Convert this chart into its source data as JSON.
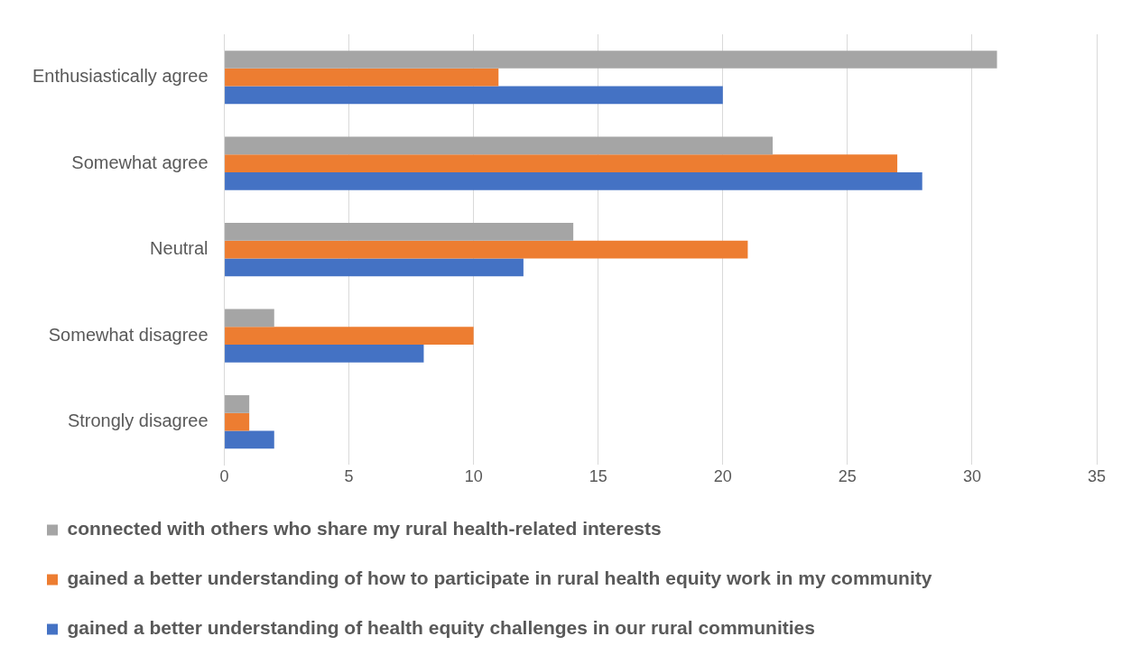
{
  "chart_data": {
    "type": "bar",
    "orientation": "horizontal",
    "categories": [
      "Enthusiastically agree",
      "Somewhat agree",
      "Neutral",
      "Somewhat disagree",
      "Strongly disagree"
    ],
    "series": [
      {
        "name": "connected with others who share my rural health-related interests",
        "color": "#a5a5a5",
        "values": [
          31,
          22,
          14,
          2,
          1
        ]
      },
      {
        "name": "gained a better understanding of how to participate in rural health equity work in my community",
        "color": "#ed7d31",
        "values": [
          11,
          27,
          21,
          10,
          1
        ]
      },
      {
        "name": "gained a better understanding of health equity challenges in our rural communities",
        "color": "#4472c4",
        "values": [
          20,
          28,
          12,
          8,
          2
        ]
      }
    ],
    "xlim": [
      0,
      35
    ],
    "xticks": [
      0,
      5,
      10,
      15,
      20,
      25,
      30,
      35
    ],
    "grid": "x",
    "legend": "bottom"
  }
}
